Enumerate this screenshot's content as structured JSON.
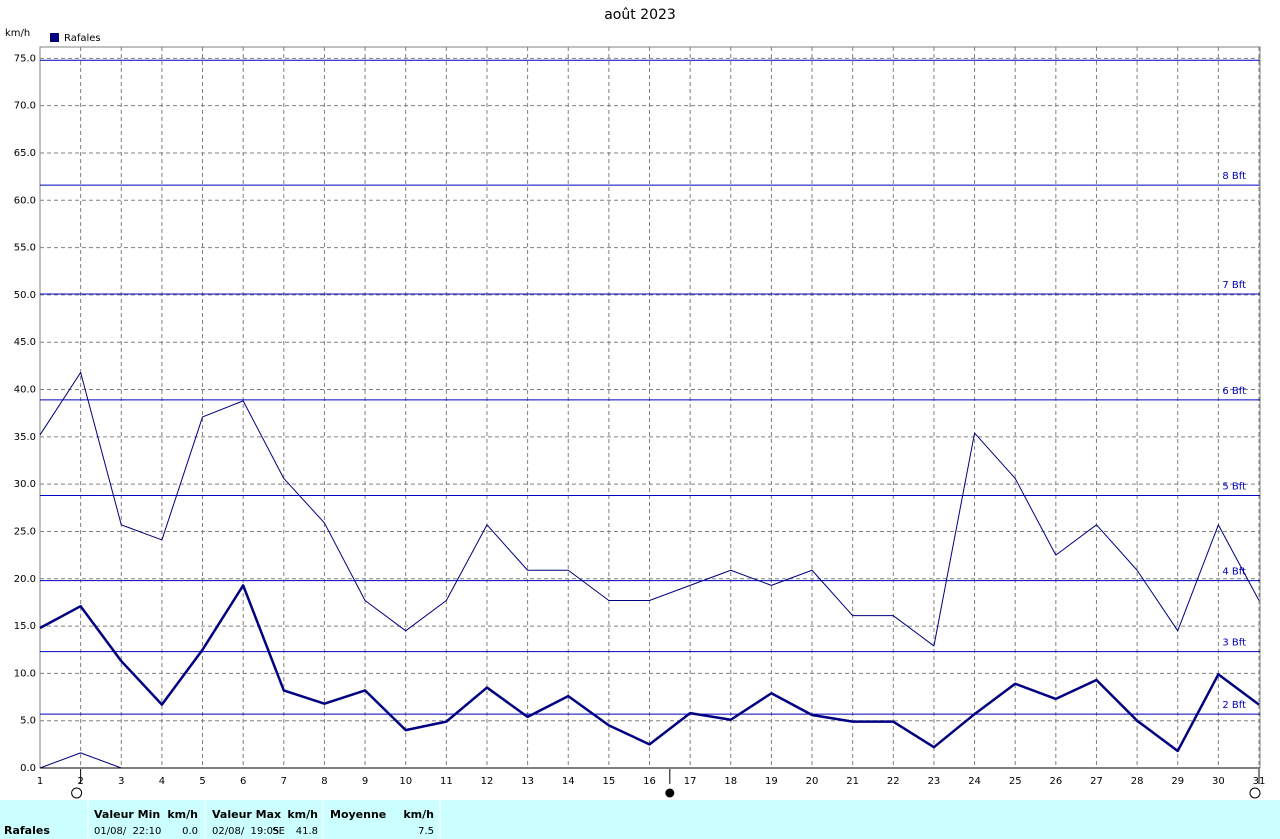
{
  "chart_data": {
    "type": "line",
    "title": "août 2023",
    "y_label": "km/h",
    "legend": "top-left",
    "grid": true,
    "x": [
      1,
      2,
      3,
      4,
      5,
      6,
      7,
      8,
      9,
      10,
      11,
      12,
      13,
      14,
      15,
      16,
      17,
      18,
      19,
      20,
      21,
      22,
      23,
      24,
      25,
      26,
      27,
      28,
      29,
      30,
      31
    ],
    "xlim": [
      1,
      31
    ],
    "xticks": [
      1,
      2,
      3,
      4,
      5,
      6,
      7,
      8,
      9,
      10,
      11,
      12,
      13,
      14,
      15,
      16,
      17,
      18,
      19,
      20,
      21,
      22,
      23,
      24,
      25,
      26,
      27,
      28,
      29,
      30,
      31
    ],
    "ylim": [
      0,
      76.2
    ],
    "yticks": [
      {
        "value": 0,
        "label": "0.0"
      },
      {
        "value": 5,
        "label": "5.0"
      },
      {
        "value": 10,
        "label": "10.0"
      },
      {
        "value": 15,
        "label": "15.0"
      },
      {
        "value": 20,
        "label": "20.0"
      },
      {
        "value": 25,
        "label": "25.0"
      },
      {
        "value": 30,
        "label": "30.0"
      },
      {
        "value": 35,
        "label": "35.0"
      },
      {
        "value": 40,
        "label": "40.0"
      },
      {
        "value": 45,
        "label": "45.0"
      },
      {
        "value": 50,
        "label": "50.0"
      },
      {
        "value": 55,
        "label": "55.0"
      },
      {
        "value": 60,
        "label": "60.0"
      },
      {
        "value": 65,
        "label": "65.0"
      },
      {
        "value": 70,
        "label": "70.0"
      },
      {
        "value": 75,
        "label": "75.0"
      }
    ],
    "series": [
      {
        "name": "Rafales",
        "color": "#000080",
        "line_width": 2.5,
        "values": [
          14.8,
          17.1,
          11.3,
          6.7,
          12.5,
          19.3,
          8.2,
          6.8,
          8.2,
          4.0,
          4.9,
          8.5,
          5.4,
          7.6,
          4.5,
          2.5,
          5.8,
          5.1,
          7.9,
          5.6,
          4.9,
          4.9,
          2.2,
          5.7,
          8.9,
          7.3,
          9.3,
          5.0,
          1.8,
          9.9,
          6.7
        ]
      },
      {
        "color": "#000080",
        "line_width": 1,
        "values": [
          35.2,
          41.8,
          25.7,
          24.1,
          37.1,
          38.8,
          30.6,
          25.9,
          17.7,
          14.5,
          17.7,
          25.7,
          20.9,
          20.9,
          17.7,
          17.7,
          19.3,
          20.9,
          19.3,
          20.9,
          16.1,
          16.1,
          12.9,
          35.4,
          30.6,
          22.5,
          25.7,
          20.9,
          14.5,
          25.7,
          17.7
        ]
      },
      {
        "color": "#000080",
        "line_width": 1,
        "values": [
          0,
          1.6,
          0,
          0,
          0,
          0,
          0,
          0,
          0,
          0,
          0,
          0,
          0,
          0,
          0,
          0,
          0,
          0,
          0,
          0,
          0,
          0,
          0,
          0,
          0,
          0,
          0,
          0,
          0,
          0,
          0
        ]
      }
    ],
    "reference_lines": {
      "color": "#0000c0",
      "lines": [
        {
          "value": 5.7,
          "label": "2 Bft"
        },
        {
          "value": 12.3,
          "label": "3 Bft"
        },
        {
          "value": 19.8,
          "label": "4 Bft"
        },
        {
          "value": 28.8,
          "label": "5 Bft"
        },
        {
          "value": 38.9,
          "label": "6 Bft"
        },
        {
          "value": 50.1,
          "label": "7 Bft"
        },
        {
          "value": 61.6,
          "label": "8 Bft"
        },
        {
          "value": 74.8,
          "label": null
        }
      ]
    },
    "moon_phases": [
      {
        "x": 2,
        "filled": false
      },
      {
        "x": 16.5,
        "filled": true
      },
      {
        "x": 31,
        "filled": false
      }
    ]
  },
  "table": {
    "header": [
      "Valeur Min",
      "km/h",
      "Valeur Max",
      "km/h",
      "Moyenne",
      "km/h"
    ],
    "row": {
      "label": "Rafales",
      "min_time": "01/08/  22:10",
      "min": "0.0",
      "max_time": "02/08/  19:05",
      "max_dir": "SE",
      "max": "41.8",
      "mean": "7.5"
    }
  }
}
